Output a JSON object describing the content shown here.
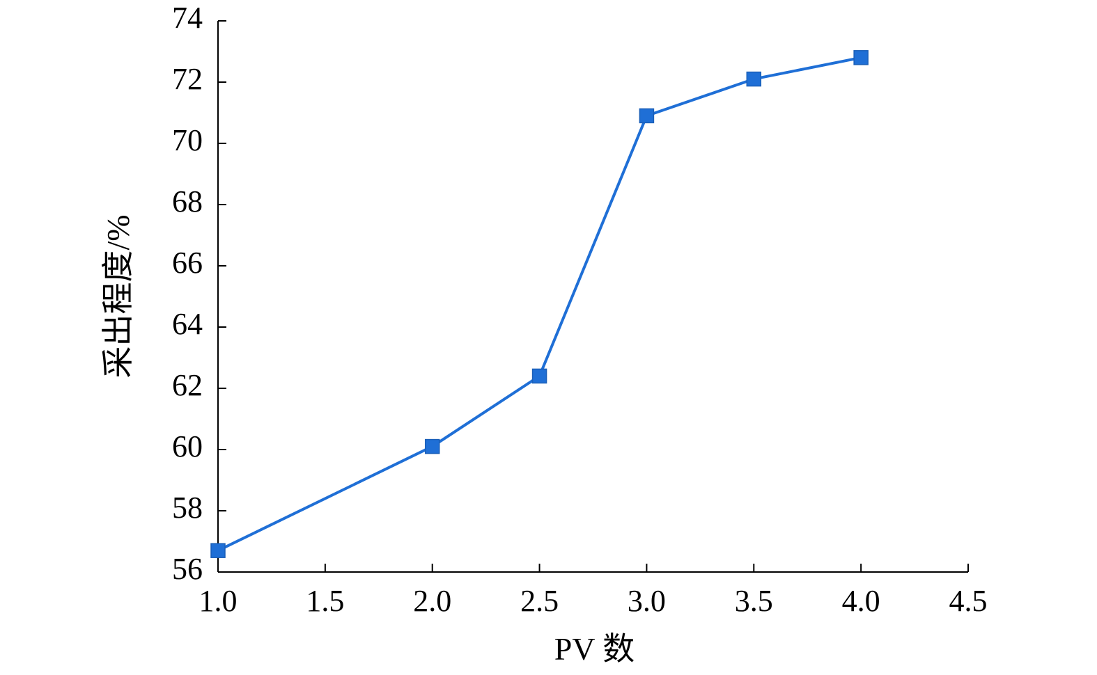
{
  "chart_data": {
    "type": "line",
    "xlabel": "PV 数",
    "ylabel": "采出程度/%",
    "xlim": [
      1.0,
      4.5
    ],
    "ylim": [
      56,
      74
    ],
    "x_ticks": [
      "1.0",
      "1.5",
      "2.0",
      "2.5",
      "3.0",
      "3.5",
      "4.0",
      "4.5"
    ],
    "y_ticks": [
      "56",
      "58",
      "60",
      "62",
      "64",
      "66",
      "68",
      "70",
      "72",
      "74"
    ],
    "series": [
      {
        "color": "#1f6fd6",
        "marker": "square",
        "x": [
          1.0,
          2.0,
          2.5,
          3.0,
          3.5,
          4.0
        ],
        "y": [
          56.7,
          60.1,
          62.4,
          70.9,
          72.1,
          72.8
        ]
      }
    ],
    "grid": false,
    "legend": "none"
  }
}
